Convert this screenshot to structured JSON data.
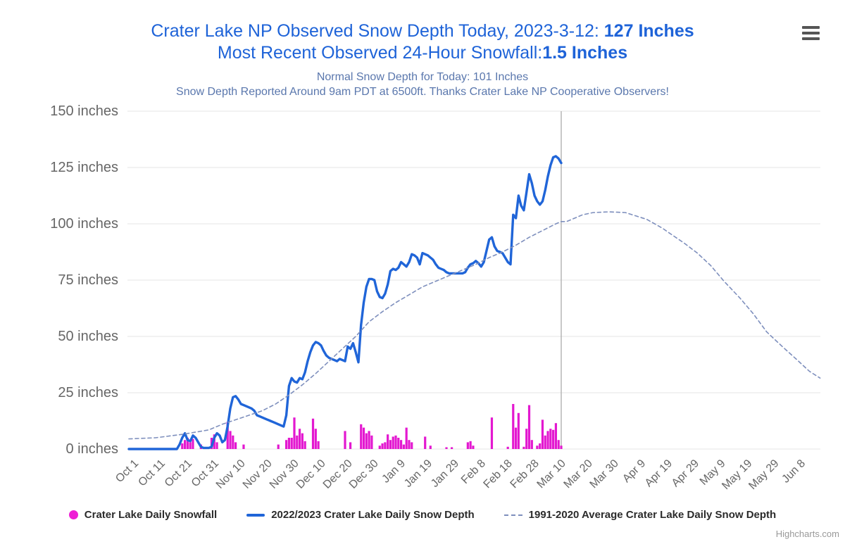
{
  "header": {
    "title_line1_prefix": "Crater Lake NP Observed Snow Depth Today, 2023-3-12: ",
    "title_line1_bold": "127 Inches",
    "title_line2_prefix": "Most Recent Observed 24-Hour Snowfall:",
    "title_line2_bold": "1.5 Inches",
    "subtitle_line1": "Normal Snow Depth for Today: 101 Inches",
    "subtitle_line2": "Snow Depth Reported Around 9am PDT at 6500ft. Thanks Crater Lake NP Cooperative Observers!"
  },
  "legend": {
    "items": [
      {
        "label": "Crater Lake Daily Snowfall",
        "symbol": "dot",
        "color": "#ee1fd5"
      },
      {
        "label": "2022/2023 Crater Lake Daily Snow Depth",
        "symbol": "line",
        "color": "#2065d8"
      },
      {
        "label": "1991-2020 Average Crater Lake Daily Snow Depth",
        "symbol": "dashed-line",
        "color": "#7e8fbd"
      }
    ]
  },
  "credits": "Highcharts.com",
  "colors": {
    "title": "#1e63d8",
    "subtitle": "#5a77ad",
    "depth_line": "#2065d8",
    "average_line": "#7e8fbd",
    "snowfall_bar": "#e318d0",
    "axis_label": "#666666",
    "gridline": "#e6e6e6",
    "today_plotline": "#aaaaaa",
    "background": "#ffffff"
  },
  "chart_data": {
    "type": "mixed",
    "title": "Crater Lake NP Observed Snow Depth Today, 2023-3-12: 127 Inches",
    "xlabel": "",
    "ylabel": "inches",
    "x_unit": "days since Oct 1 (2022-2023 season)",
    "ylim": [
      0,
      150
    ],
    "xlim_days": [
      0,
      259
    ],
    "grid": "horizontal-only",
    "legend_position": "bottom",
    "today": {
      "day": 162,
      "date": "2023-3-12",
      "observed_depth_in": 127,
      "snowfall_24h_in": 1.5,
      "normal_depth_in": 101
    },
    "yticks": [
      {
        "value": 0,
        "label": "0 inches"
      },
      {
        "value": 25,
        "label": "25 inches"
      },
      {
        "value": 50,
        "label": "50 inches"
      },
      {
        "value": 75,
        "label": "75 inches"
      },
      {
        "value": 100,
        "label": "100 inches"
      },
      {
        "value": 125,
        "label": "125 inches"
      },
      {
        "value": 150,
        "label": "150 inches"
      }
    ],
    "xticks": [
      {
        "day": 0,
        "label": "Oct 1"
      },
      {
        "day": 10,
        "label": "Oct 11"
      },
      {
        "day": 20,
        "label": "Oct 21"
      },
      {
        "day": 30,
        "label": "Oct 31"
      },
      {
        "day": 40,
        "label": "Nov 10"
      },
      {
        "day": 50,
        "label": "Nov 20"
      },
      {
        "day": 60,
        "label": "Nov 30"
      },
      {
        "day": 70,
        "label": "Dec 10"
      },
      {
        "day": 80,
        "label": "Dec 20"
      },
      {
        "day": 90,
        "label": "Dec 30"
      },
      {
        "day": 100,
        "label": "Jan 9"
      },
      {
        "day": 110,
        "label": "Jan 19"
      },
      {
        "day": 120,
        "label": "Jan 29"
      },
      {
        "day": 130,
        "label": "Feb 8"
      },
      {
        "day": 140,
        "label": "Feb 18"
      },
      {
        "day": 150,
        "label": "Feb 28"
      },
      {
        "day": 160,
        "label": "Mar 10"
      },
      {
        "day": 170,
        "label": "Mar 20"
      },
      {
        "day": 180,
        "label": "Mar 30"
      },
      {
        "day": 190,
        "label": "Apr 9"
      },
      {
        "day": 200,
        "label": "Apr 19"
      },
      {
        "day": 210,
        "label": "Apr 29"
      },
      {
        "day": 220,
        "label": "May 9"
      },
      {
        "day": 230,
        "label": "May 19"
      },
      {
        "day": 240,
        "label": "May 29"
      },
      {
        "day": 250,
        "label": "Jun 8"
      }
    ],
    "series": [
      {
        "name": "Crater Lake Daily Snowfall",
        "type": "column",
        "color": "#e318d0",
        "points": [
          [
            20,
            2.5
          ],
          [
            21,
            4
          ],
          [
            22,
            5
          ],
          [
            23,
            3
          ],
          [
            24,
            4.5
          ],
          [
            27,
            2
          ],
          [
            31,
            5
          ],
          [
            32,
            6.5
          ],
          [
            33,
            3
          ],
          [
            37,
            12
          ],
          [
            38,
            8
          ],
          [
            39,
            6
          ],
          [
            40,
            3
          ],
          [
            43,
            2
          ],
          [
            56,
            2
          ],
          [
            59,
            4
          ],
          [
            60,
            5
          ],
          [
            61,
            5
          ],
          [
            62,
            14
          ],
          [
            63,
            6
          ],
          [
            64,
            9
          ],
          [
            65,
            7
          ],
          [
            66,
            3.5
          ],
          [
            69,
            13.5
          ],
          [
            70,
            9
          ],
          [
            71,
            3.5
          ],
          [
            81,
            8
          ],
          [
            83,
            3
          ],
          [
            87,
            11
          ],
          [
            88,
            9.5
          ],
          [
            89,
            7
          ],
          [
            90,
            8
          ],
          [
            91,
            6
          ],
          [
            94,
            1.5
          ],
          [
            95,
            2.5
          ],
          [
            96,
            3
          ],
          [
            97,
            6.5
          ],
          [
            98,
            4
          ],
          [
            99,
            5.5
          ],
          [
            100,
            6
          ],
          [
            101,
            5
          ],
          [
            102,
            4
          ],
          [
            103,
            2
          ],
          [
            104,
            9.5
          ],
          [
            105,
            4
          ],
          [
            106,
            3
          ],
          [
            111,
            5.5
          ],
          [
            113,
            1.5
          ],
          [
            119,
            0.8
          ],
          [
            121,
            0.8
          ],
          [
            127,
            3
          ],
          [
            128,
            3.5
          ],
          [
            129,
            1.5
          ],
          [
            136,
            14
          ],
          [
            142,
            1
          ],
          [
            144,
            20
          ],
          [
            145,
            9.5
          ],
          [
            146,
            16
          ],
          [
            148,
            1
          ],
          [
            149,
            9
          ],
          [
            150,
            19.5
          ],
          [
            151,
            4
          ],
          [
            153,
            1.5
          ],
          [
            154,
            2.5
          ],
          [
            155,
            13
          ],
          [
            156,
            6
          ],
          [
            157,
            8
          ],
          [
            158,
            9
          ],
          [
            159,
            8.5
          ],
          [
            160,
            11.5
          ],
          [
            161,
            4
          ],
          [
            162,
            1.5
          ]
        ]
      },
      {
        "name": "2022/2023 Crater Lake Daily Snow Depth",
        "type": "line",
        "color": "#2065d8",
        "points": [
          [
            0,
            0
          ],
          [
            18,
            0
          ],
          [
            19,
            2
          ],
          [
            20,
            5
          ],
          [
            21,
            7
          ],
          [
            22,
            4
          ],
          [
            23,
            3.5
          ],
          [
            24,
            6
          ],
          [
            25,
            5
          ],
          [
            26,
            3
          ],
          [
            27,
            1
          ],
          [
            28,
            0.5
          ],
          [
            30,
            0.5
          ],
          [
            31,
            1
          ],
          [
            32,
            5
          ],
          [
            33,
            7
          ],
          [
            34,
            6
          ],
          [
            35,
            3
          ],
          [
            36,
            4
          ],
          [
            37,
            10
          ],
          [
            38,
            18
          ],
          [
            39,
            23
          ],
          [
            40,
            23.5
          ],
          [
            41,
            22
          ],
          [
            42,
            20
          ],
          [
            43,
            19.5
          ],
          [
            44,
            19
          ],
          [
            45,
            18.5
          ],
          [
            46,
            18
          ],
          [
            47,
            17
          ],
          [
            48,
            15
          ],
          [
            49,
            14.5
          ],
          [
            50,
            14
          ],
          [
            51,
            13.5
          ],
          [
            52,
            13
          ],
          [
            53,
            12.5
          ],
          [
            54,
            12
          ],
          [
            55,
            11.5
          ],
          [
            56,
            11
          ],
          [
            57,
            10.5
          ],
          [
            58,
            10
          ],
          [
            59,
            15
          ],
          [
            60,
            28
          ],
          [
            61,
            31.5
          ],
          [
            62,
            30
          ],
          [
            63,
            29.5
          ],
          [
            64,
            31.5
          ],
          [
            65,
            31
          ],
          [
            66,
            34
          ],
          [
            67,
            39
          ],
          [
            68,
            43
          ],
          [
            69,
            46
          ],
          [
            70,
            47.5
          ],
          [
            71,
            47
          ],
          [
            72,
            46
          ],
          [
            73,
            43.5
          ],
          [
            74,
            41.5
          ],
          [
            75,
            40.5
          ],
          [
            76,
            40
          ],
          [
            77,
            39.5
          ],
          [
            78,
            39
          ],
          [
            79,
            40
          ],
          [
            80,
            39.5
          ],
          [
            81,
            39
          ],
          [
            82,
            45.5
          ],
          [
            83,
            44.5
          ],
          [
            84,
            47
          ],
          [
            85,
            43
          ],
          [
            86,
            38.5
          ],
          [
            87,
            55
          ],
          [
            88,
            65
          ],
          [
            89,
            72
          ],
          [
            90,
            75.5
          ],
          [
            91,
            75.5
          ],
          [
            92,
            75
          ],
          [
            93,
            70
          ],
          [
            94,
            67.5
          ],
          [
            95,
            67
          ],
          [
            96,
            69
          ],
          [
            97,
            73
          ],
          [
            98,
            79
          ],
          [
            99,
            80
          ],
          [
            100,
            79.5
          ],
          [
            101,
            80.5
          ],
          [
            102,
            83
          ],
          [
            103,
            82
          ],
          [
            104,
            81
          ],
          [
            105,
            83
          ],
          [
            106,
            86.5
          ],
          [
            107,
            86
          ],
          [
            108,
            85
          ],
          [
            109,
            82
          ],
          [
            110,
            87
          ],
          [
            111,
            86.5
          ],
          [
            112,
            86
          ],
          [
            113,
            85
          ],
          [
            114,
            84
          ],
          [
            115,
            82
          ],
          [
            116,
            80.5
          ],
          [
            117,
            80
          ],
          [
            118,
            79.5
          ],
          [
            119,
            78.5
          ],
          [
            120,
            78
          ],
          [
            125,
            78
          ],
          [
            126,
            78.5
          ],
          [
            127,
            80.5
          ],
          [
            128,
            82
          ],
          [
            129,
            82.5
          ],
          [
            130,
            83.5
          ],
          [
            131,
            82.5
          ],
          [
            132,
            81
          ],
          [
            133,
            83
          ],
          [
            134,
            88
          ],
          [
            135,
            93
          ],
          [
            136,
            94
          ],
          [
            137,
            90
          ],
          [
            138,
            88
          ],
          [
            139,
            87.5
          ],
          [
            140,
            87
          ],
          [
            141,
            85
          ],
          [
            142,
            83
          ],
          [
            143,
            82
          ],
          [
            144,
            104
          ],
          [
            145,
            102.5
          ],
          [
            146,
            112.5
          ],
          [
            147,
            108
          ],
          [
            148,
            106
          ],
          [
            149,
            114
          ],
          [
            150,
            122
          ],
          [
            151,
            118
          ],
          [
            152,
            112.5
          ],
          [
            153,
            110
          ],
          [
            154,
            108.5
          ],
          [
            155,
            110
          ],
          [
            156,
            115
          ],
          [
            157,
            121
          ],
          [
            158,
            126
          ],
          [
            159,
            129.5
          ],
          [
            160,
            130
          ],
          [
            161,
            129
          ],
          [
            162,
            127
          ]
        ]
      },
      {
        "name": "1991-2020 Average Crater Lake Daily Snow Depth",
        "type": "dashed-line",
        "color": "#7e8fbd",
        "points": [
          [
            0,
            4.5
          ],
          [
            10,
            5
          ],
          [
            20,
            6.5
          ],
          [
            25,
            7.5
          ],
          [
            30,
            8.5
          ],
          [
            35,
            11
          ],
          [
            40,
            13
          ],
          [
            45,
            15
          ],
          [
            50,
            17
          ],
          [
            55,
            20
          ],
          [
            60,
            24
          ],
          [
            65,
            28.5
          ],
          [
            70,
            33.5
          ],
          [
            75,
            39
          ],
          [
            80,
            44.5
          ],
          [
            85,
            50
          ],
          [
            90,
            56.5
          ],
          [
            95,
            61
          ],
          [
            100,
            65
          ],
          [
            105,
            68.5
          ],
          [
            110,
            72
          ],
          [
            115,
            74.5
          ],
          [
            120,
            77
          ],
          [
            125,
            79.5
          ],
          [
            130,
            82
          ],
          [
            135,
            85
          ],
          [
            140,
            87.5
          ],
          [
            145,
            90.5
          ],
          [
            150,
            94
          ],
          [
            155,
            97
          ],
          [
            160,
            100
          ],
          [
            162,
            101
          ],
          [
            164,
            101
          ],
          [
            167,
            102.5
          ],
          [
            170,
            104
          ],
          [
            174,
            105
          ],
          [
            180,
            105.3
          ],
          [
            186,
            105
          ],
          [
            190,
            103.5
          ],
          [
            194,
            102
          ],
          [
            197,
            100
          ],
          [
            200,
            98
          ],
          [
            203,
            95.5
          ],
          [
            208,
            91.5
          ],
          [
            213,
            87
          ],
          [
            218,
            81.5
          ],
          [
            223,
            74.5
          ],
          [
            229,
            67
          ],
          [
            234,
            60
          ],
          [
            239,
            52
          ],
          [
            245,
            45.3
          ],
          [
            250,
            40
          ],
          [
            255,
            34.5
          ],
          [
            259,
            31.5
          ]
        ]
      }
    ]
  }
}
